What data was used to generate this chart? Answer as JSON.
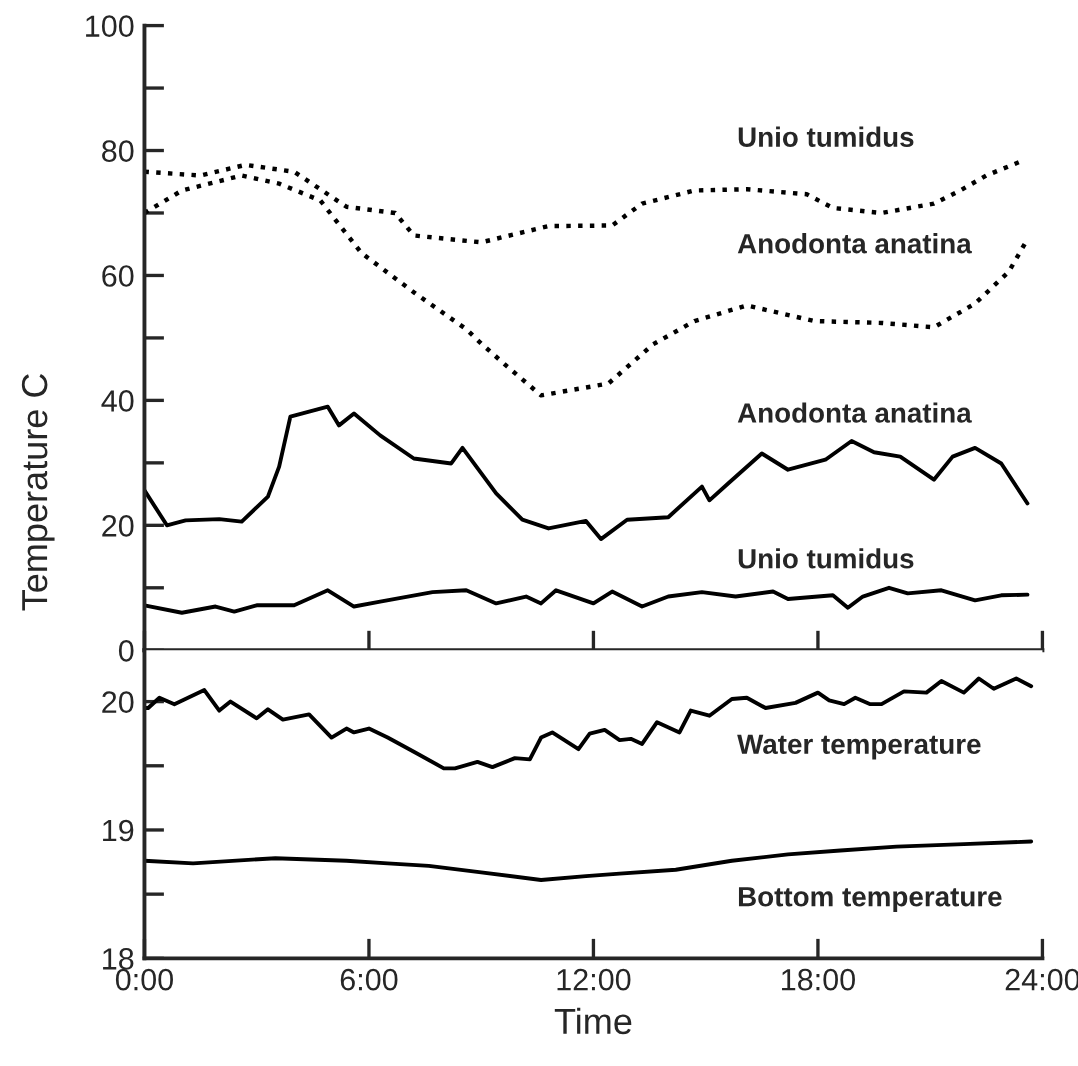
{
  "chart_data": [
    {
      "type": "line",
      "ylabel": "Temperature C",
      "xlim": [
        0,
        24
      ],
      "ylim": [
        0,
        100
      ],
      "xticks": [
        {
          "value": 0,
          "label": null
        },
        {
          "value": 6,
          "label": null
        },
        {
          "value": 12,
          "label": null
        },
        {
          "value": 18,
          "label": null
        },
        {
          "value": 24,
          "label": null
        }
      ],
      "yticks": [
        0,
        {
          "value": 10,
          "label": null
        },
        20,
        {
          "value": 30,
          "label": null
        },
        40,
        {
          "value": 50,
          "label": null
        },
        60,
        {
          "value": 70,
          "label": null
        },
        80,
        {
          "value": 90,
          "label": null
        },
        100
      ],
      "tick_labels": "y",
      "grid": false,
      "legend": false,
      "marker": "none",
      "series": [
        {
          "name": "Unio tumidus",
          "color": "#000000",
          "line_style": "dotted",
          "x": [
            0,
            1.5,
            2.7,
            4,
            5.4,
            6.7,
            7.2,
            9,
            10.8,
            12.5,
            13.3,
            14.7,
            16.1,
            17.7,
            18.4,
            19.7,
            21.1,
            21.8,
            22.5,
            23.4
          ],
          "values": [
            76.6,
            76,
            77.7,
            76.6,
            71,
            70,
            66.4,
            65.3,
            67.9,
            68,
            71.5,
            73.6,
            73.8,
            73,
            70.8,
            70,
            71.5,
            73.6,
            76,
            78.2
          ]
        },
        {
          "name": "Anodonta anatina",
          "color": "#000000",
          "line_style": "dotted",
          "x": [
            0,
            1,
            2.6,
            3.6,
            4.7,
            5.8,
            7.2,
            8.6,
            9,
            9.7,
            10.6,
            12.4,
            13.6,
            14.7,
            16.1,
            17.9,
            19.7,
            21.1,
            22.2,
            23.1,
            23.6
          ],
          "values": [
            70,
            73.6,
            76,
            74.7,
            72,
            63.6,
            57.3,
            51.4,
            49.1,
            45.4,
            40.8,
            42.7,
            49,
            52.7,
            55.2,
            52.7,
            52.4,
            51.7,
            55.5,
            60.6,
            65.8
          ]
        },
        {
          "name": "Anodonta anatina",
          "color": "#000000",
          "line_style": "solid",
          "x": [
            0,
            0.6,
            1.1,
            2,
            2.6,
            3.3,
            3.6,
            3.9,
            4.9,
            5.2,
            5.6,
            6.3,
            7.2,
            8.2,
            8.5,
            9.4,
            10.1,
            10.8,
            11.8,
            12.2,
            12.9,
            14,
            14.9,
            15.1,
            15.6,
            16.5,
            17.2,
            18.2,
            18.9,
            19.5,
            20.2,
            21.1,
            21.6,
            22.2,
            22.9,
            23.6
          ],
          "values": [
            25.6,
            20,
            20.8,
            21,
            20.6,
            24.6,
            29.4,
            37.4,
            39,
            36,
            37.9,
            34.4,
            30.7,
            29.9,
            32.4,
            25.1,
            20.9,
            19.5,
            20.7,
            17.8,
            20.9,
            21.3,
            26.2,
            24,
            26.7,
            31.5,
            28.9,
            30.5,
            33.5,
            31.7,
            31,
            27.3,
            31,
            32.4,
            29.9,
            23.5
          ]
        },
        {
          "name": "Unio tumidus",
          "color": "#000000",
          "line_style": "solid",
          "x": [
            0,
            1,
            1.9,
            2.4,
            3,
            4,
            4.9,
            5.6,
            6.3,
            7.7,
            8.6,
            9.4,
            10.2,
            10.6,
            11,
            12,
            12.5,
            13.3,
            14,
            14.9,
            15.8,
            16.8,
            17.2,
            18.4,
            18.8,
            19.2,
            19.9,
            20.4,
            21.3,
            22.2,
            22.9,
            23.6
          ],
          "values": [
            7.2,
            6,
            7,
            6.2,
            7.2,
            7.2,
            9.6,
            7,
            7.8,
            9.3,
            9.6,
            7.5,
            8.6,
            7.5,
            9.6,
            7.5,
            9.4,
            7,
            8.6,
            9.3,
            8.6,
            9.4,
            8.2,
            8.8,
            6.8,
            8.6,
            10,
            9.1,
            9.6,
            8,
            8.8,
            8.9
          ]
        }
      ]
    },
    {
      "type": "line",
      "xlabel": "Time",
      "xlim": [
        0,
        24
      ],
      "ylim": [
        18,
        20.4
      ],
      "xticks": [
        {
          "value": 0,
          "label": "0:00"
        },
        {
          "value": 6,
          "label": "6:00"
        },
        {
          "value": 12,
          "label": "12:00"
        },
        {
          "value": 18,
          "label": "18:00"
        },
        {
          "value": 24,
          "label": "24:00"
        }
      ],
      "yticks": [
        18,
        {
          "value": 18.5,
          "label": null
        },
        19,
        {
          "value": 19.5,
          "label": null
        },
        20
      ],
      "grid": false,
      "legend": false,
      "marker": "none",
      "series": [
        {
          "name": "Water temperature",
          "color": "#000000",
          "line_style": "solid",
          "x": [
            0,
            0.1,
            0.4,
            0.8,
            1.6,
            2,
            2.3,
            3,
            3.3,
            3.7,
            4.4,
            4.6,
            5,
            5.4,
            5.6,
            6,
            6.5,
            7.2,
            8,
            8.3,
            8.9,
            9.3,
            9.9,
            10.3,
            10.6,
            10.9,
            11.6,
            11.9,
            12.3,
            12.7,
            13,
            13.3,
            13.7,
            14.3,
            14.6,
            15.1,
            15.7,
            16.1,
            16.6,
            17.4,
            18,
            18.3,
            18.7,
            19,
            19.4,
            19.7,
            20.3,
            20.9,
            21.3,
            21.9,
            22.3,
            22.7,
            23.3,
            23.7
          ],
          "values": [
            19.95,
            19.95,
            20.03,
            19.98,
            20.09,
            19.93,
            20,
            19.87,
            19.94,
            19.86,
            19.9,
            19.84,
            19.72,
            19.79,
            19.76,
            19.79,
            19.72,
            19.61,
            19.48,
            19.48,
            19.53,
            19.49,
            19.56,
            19.55,
            19.72,
            19.76,
            19.63,
            19.75,
            19.78,
            19.7,
            19.71,
            19.67,
            19.84,
            19.76,
            19.93,
            19.89,
            20.02,
            20.03,
            19.95,
            19.99,
            20.07,
            20.01,
            19.98,
            20.03,
            19.98,
            19.98,
            20.08,
            20.07,
            20.16,
            20.07,
            20.18,
            20.1,
            20.18,
            20.12
          ]
        },
        {
          "name": "Bottom temperature",
          "color": "#000000",
          "line_style": "solid",
          "x": [
            0,
            1.3,
            3.5,
            5.4,
            6.5,
            7.6,
            9,
            10.6,
            11.8,
            12.7,
            14.2,
            15.7,
            17.2,
            18.6,
            20.1,
            21.9,
            23.7
          ],
          "values": [
            18.76,
            18.74,
            18.78,
            18.76,
            18.74,
            18.72,
            18.67,
            18.61,
            18.64,
            18.66,
            18.69,
            18.76,
            18.81,
            18.84,
            18.87,
            18.89,
            18.91
          ]
        }
      ]
    }
  ]
}
